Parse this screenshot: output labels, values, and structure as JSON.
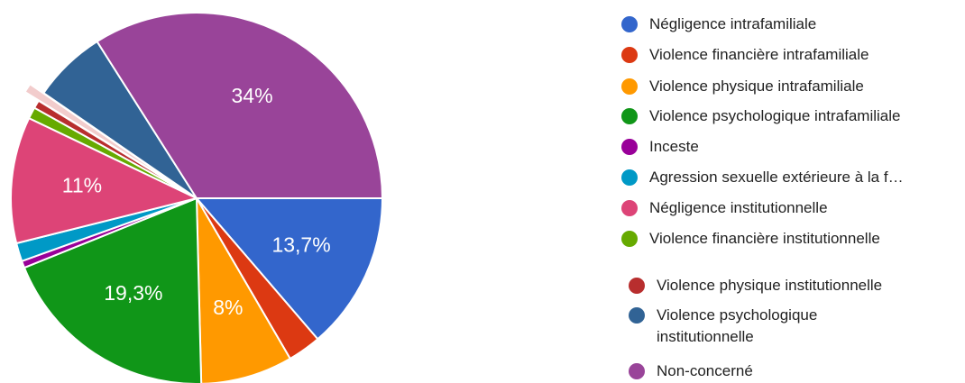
{
  "chart_data": {
    "type": "pie",
    "title": "",
    "slices": [
      {
        "label": "Négligence intrafamiliale",
        "value": 13.7,
        "display": "13,7%",
        "color": "#3366cc"
      },
      {
        "label": "Violence financière intrafamiliale",
        "value": 2.9,
        "display": "",
        "color": "#dc3912"
      },
      {
        "label": "Violence physique intrafamiliale",
        "value": 8.0,
        "display": "8%",
        "color": "#ff9900"
      },
      {
        "label": "Violence psychologique intrafamiliale",
        "value": 19.3,
        "display": "19,3%",
        "color": "#109618"
      },
      {
        "label": "Inceste",
        "value": 0.6,
        "display": "",
        "color": "#990099"
      },
      {
        "label": "Agression sexuelle extérieure à la f…",
        "value": 1.6,
        "display": "",
        "color": "#0099c6"
      },
      {
        "label": "Négligence institutionnelle",
        "value": 11.0,
        "display": "11%",
        "color": "#dd4477"
      },
      {
        "label": "Violence financière institutionnelle",
        "value": 1.0,
        "display": "",
        "color": "#66aa00"
      },
      {
        "label": "Violence physique institutionnelle",
        "value": 0.7,
        "display": "",
        "color": "#b82e2e"
      },
      {
        "label": "",
        "value": 0.8,
        "display": "",
        "color": "#f2cccc",
        "exploded": true
      },
      {
        "label": "Violence psychologique institutionnelle",
        "value": 6.4,
        "display": "",
        "color": "#316395"
      },
      {
        "label": "Non-concerné",
        "value": 34.0,
        "display": "34%",
        "color": "#994499"
      }
    ],
    "legend_position": "right"
  }
}
